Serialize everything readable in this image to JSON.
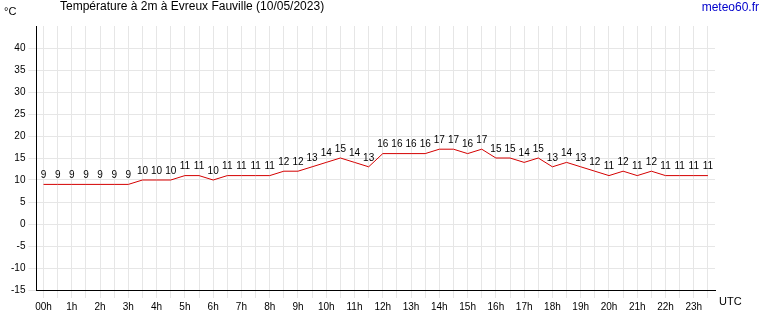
{
  "chart_data": {
    "type": "line",
    "title": "Température à 2m à Evreux Fauville (10/05/2023)",
    "annotations": [
      "meteo60.fr"
    ],
    "ylabel": "°C",
    "xlabel": "UTC",
    "categories": [
      "00h",
      null,
      "1h",
      null,
      "2h",
      null,
      "3h",
      null,
      "4h",
      null,
      "5h",
      null,
      "6h",
      null,
      "7h",
      null,
      "8h",
      null,
      "9h",
      null,
      "10h",
      null,
      "11h",
      null,
      "12h",
      null,
      "13h",
      null,
      "14h",
      null,
      "15h",
      null,
      "16h",
      null,
      "17h",
      null,
      "18h",
      null,
      "19h",
      null,
      "20h",
      null,
      "21h",
      null,
      "22h",
      null,
      "23h",
      null
    ],
    "values": [
      9,
      9,
      9,
      9,
      9,
      9,
      9,
      10,
      10,
      10,
      11,
      11,
      10,
      11,
      11,
      11,
      11,
      12,
      12,
      13,
      14,
      15,
      14,
      13,
      16,
      16,
      16,
      16,
      17,
      17,
      16,
      17,
      15,
      15,
      14,
      15,
      13,
      14,
      13,
      12,
      11,
      12,
      11,
      12,
      11,
      11,
      11,
      11
    ],
    "color": "#d40000",
    "ylim": [
      -15,
      45
    ],
    "yticks": [
      -15,
      -10,
      -5,
      0,
      5,
      10,
      15,
      20,
      25,
      30,
      35,
      40
    ],
    "grid": true,
    "data_labels": true
  }
}
